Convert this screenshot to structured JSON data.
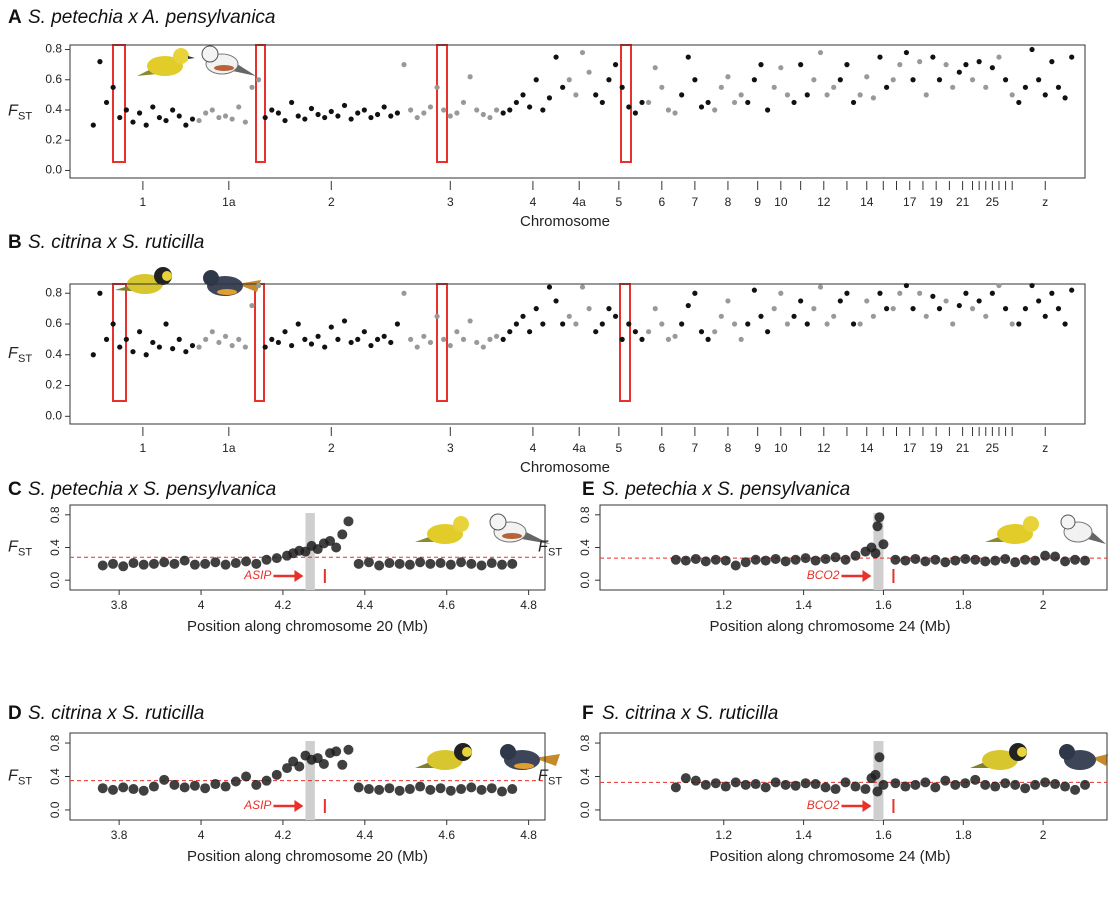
{
  "chart_data": [
    {
      "type": "manhattan",
      "panel": "A",
      "title": "S. petechia x A. pensylvanica",
      "y_label": "F",
      "y_label_sub": "ST",
      "x_label": "Chromosome",
      "ylim": [
        -0.05,
        0.83
      ],
      "yticks": [
        {
          "value": 0,
          "label": "0.0"
        },
        0.2,
        0.4,
        0.6,
        0.8
      ],
      "colors": [
        "#111111",
        "#999999"
      ],
      "chromosomes": [
        {
          "label": "1",
          "values": [
            0.3,
            0.72,
            0.45,
            0.55,
            0.35,
            0.4,
            0.32,
            0.38,
            0.3,
            0.42,
            0.35,
            0.33,
            0.4,
            0.36,
            0.3,
            0.34
          ]
        },
        {
          "label": "1a",
          "values": [
            0.33,
            0.38,
            0.4,
            0.35,
            0.36,
            0.34,
            0.42,
            0.32,
            0.55,
            0.6
          ]
        },
        {
          "label": "2",
          "values": [
            0.35,
            0.4,
            0.38,
            0.33,
            0.45,
            0.36,
            0.34,
            0.41,
            0.37,
            0.35,
            0.39,
            0.36,
            0.43,
            0.34,
            0.38,
            0.4,
            0.35,
            0.37,
            0.42,
            0.36,
            0.38
          ]
        },
        {
          "label": "3",
          "values": [
            0.7,
            0.4,
            0.35,
            0.38,
            0.42,
            0.55,
            0.4,
            0.36,
            0.38,
            0.45,
            0.62,
            0.4,
            0.37,
            0.35,
            0.4
          ]
        },
        {
          "label": "4",
          "values": [
            0.38,
            0.4,
            0.45,
            0.5,
            0.42,
            0.6,
            0.4,
            0.48,
            0.75,
            0.55
          ]
        },
        {
          "label": "4a",
          "values": [
            0.6,
            0.5,
            0.78,
            0.65
          ]
        },
        {
          "label": "5",
          "values": [
            0.5,
            0.45,
            0.6,
            0.7,
            0.55,
            0.42,
            0.38,
            0.45
          ]
        },
        {
          "label": "6",
          "values": [
            0.45,
            0.68,
            0.55,
            0.4,
            0.38
          ]
        },
        {
          "label": "7",
          "values": [
            0.5,
            0.75,
            0.6,
            0.42,
            0.45
          ]
        },
        {
          "label": "8",
          "values": [
            0.4,
            0.55,
            0.62,
            0.45,
            0.5
          ]
        },
        {
          "label": "9",
          "values": [
            0.45,
            0.6,
            0.7,
            0.4
          ]
        },
        {
          "label": "10",
          "values": [
            0.55,
            0.68,
            0.5
          ]
        },
        {
          "label": null,
          "values": [
            0.45,
            0.7,
            0.5
          ]
        },
        {
          "label": "12",
          "values": [
            0.6,
            0.78,
            0.5,
            0.55
          ]
        },
        {
          "label": null,
          "values": [
            0.6,
            0.7,
            0.45
          ]
        },
        {
          "label": "14",
          "values": [
            0.5,
            0.62,
            0.48
          ]
        },
        {
          "label": null,
          "values": [
            0.75,
            0.55
          ]
        },
        {
          "label": null,
          "values": [
            0.6,
            0.7
          ]
        },
        {
          "label": "17",
          "values": [
            0.78,
            0.6
          ]
        },
        {
          "label": null,
          "values": [
            0.72,
            0.5
          ]
        },
        {
          "label": "19",
          "values": [
            0.75,
            0.6
          ]
        },
        {
          "label": null,
          "values": [
            0.7,
            0.55
          ]
        },
        {
          "label": "21",
          "values": [
            0.65,
            0.7
          ]
        },
        {
          "label": null,
          "values": [
            0.6
          ]
        },
        {
          "label": null,
          "values": [
            0.72
          ]
        },
        {
          "label": null,
          "values": [
            0.55
          ]
        },
        {
          "label": "25",
          "values": [
            0.68
          ]
        },
        {
          "label": null,
          "values": [
            0.75
          ]
        },
        {
          "label": null,
          "values": [
            0.6
          ]
        },
        {
          "label": null,
          "values": [
            0.5
          ]
        },
        {
          "label": "z",
          "values": [
            0.45,
            0.55,
            0.8,
            0.6,
            0.5,
            0.72,
            0.55,
            0.48,
            0.75
          ]
        }
      ]
    },
    {
      "type": "manhattan",
      "panel": "B",
      "title": "S. citrina x S. ruticilla",
      "y_label": "F",
      "y_label_sub": "ST",
      "x_label": "Chromosome",
      "ylim": [
        -0.05,
        0.86
      ],
      "yticks": [
        {
          "value": 0,
          "label": "0.0"
        },
        0.2,
        0.4,
        0.6,
        0.8
      ],
      "colors": [
        "#111111",
        "#999999"
      ],
      "chromosomes": [
        {
          "label": "1",
          "values": [
            0.4,
            0.8,
            0.5,
            0.6,
            0.45,
            0.5,
            0.42,
            0.55,
            0.4,
            0.48,
            0.45,
            0.6,
            0.44,
            0.5,
            0.42,
            0.46
          ]
        },
        {
          "label": "1a",
          "values": [
            0.45,
            0.5,
            0.55,
            0.48,
            0.52,
            0.46,
            0.5,
            0.45,
            0.72,
            0.85
          ]
        },
        {
          "label": "2",
          "values": [
            0.45,
            0.5,
            0.48,
            0.55,
            0.46,
            0.6,
            0.5,
            0.47,
            0.52,
            0.45,
            0.58,
            0.5,
            0.62,
            0.48,
            0.5,
            0.55,
            0.46,
            0.5,
            0.52,
            0.48,
            0.6
          ]
        },
        {
          "label": "3",
          "values": [
            0.8,
            0.5,
            0.45,
            0.52,
            0.48,
            0.65,
            0.5,
            0.46,
            0.55,
            0.5,
            0.62,
            0.48,
            0.45,
            0.5,
            0.52
          ]
        },
        {
          "label": "4",
          "values": [
            0.5,
            0.55,
            0.6,
            0.65,
            0.55,
            0.7,
            0.6,
            0.84,
            0.75,
            0.6
          ]
        },
        {
          "label": "4a",
          "values": [
            0.65,
            0.6,
            0.84,
            0.7
          ]
        },
        {
          "label": "5",
          "values": [
            0.55,
            0.6,
            0.7,
            0.65,
            0.5,
            0.6,
            0.55,
            0.5
          ]
        },
        {
          "label": "6",
          "values": [
            0.55,
            0.7,
            0.6,
            0.5,
            0.52
          ]
        },
        {
          "label": "7",
          "values": [
            0.6,
            0.72,
            0.8,
            0.55,
            0.5
          ]
        },
        {
          "label": "8",
          "values": [
            0.55,
            0.65,
            0.75,
            0.6,
            0.5
          ]
        },
        {
          "label": "9",
          "values": [
            0.6,
            0.82,
            0.65,
            0.55
          ]
        },
        {
          "label": "10",
          "values": [
            0.7,
            0.8,
            0.6
          ]
        },
        {
          "label": null,
          "values": [
            0.65,
            0.75,
            0.6
          ]
        },
        {
          "label": "12",
          "values": [
            0.7,
            0.84,
            0.6,
            0.65
          ]
        },
        {
          "label": null,
          "values": [
            0.75,
            0.8,
            0.6
          ]
        },
        {
          "label": "14",
          "values": [
            0.6,
            0.75,
            0.65
          ]
        },
        {
          "label": null,
          "values": [
            0.8,
            0.7
          ]
        },
        {
          "label": null,
          "values": [
            0.7,
            0.8
          ]
        },
        {
          "label": "17",
          "values": [
            0.85,
            0.7
          ]
        },
        {
          "label": null,
          "values": [
            0.8,
            0.65
          ]
        },
        {
          "label": "19",
          "values": [
            0.78,
            0.7
          ]
        },
        {
          "label": null,
          "values": [
            0.75,
            0.6
          ]
        },
        {
          "label": "21",
          "values": [
            0.72,
            0.8
          ]
        },
        {
          "label": null,
          "values": [
            0.7
          ]
        },
        {
          "label": null,
          "values": [
            0.75
          ]
        },
        {
          "label": null,
          "values": [
            0.65
          ]
        },
        {
          "label": "25",
          "values": [
            0.8
          ]
        },
        {
          "label": null,
          "values": [
            0.85
          ]
        },
        {
          "label": null,
          "values": [
            0.7
          ]
        },
        {
          "label": null,
          "values": [
            0.6
          ]
        },
        {
          "label": "z",
          "values": [
            0.6,
            0.7,
            0.85,
            0.75,
            0.65,
            0.8,
            0.7,
            0.6,
            0.82
          ]
        }
      ]
    },
    {
      "type": "scatter",
      "panel": "C",
      "title": "S. petechia x S. pensylvanica",
      "y_label": "F",
      "y_label_sub": "ST",
      "x_label": "Position along chromosome 20 (Mb)",
      "xlim": [
        3.68,
        4.84
      ],
      "xticks": [
        3.8,
        4,
        4.2,
        4.4,
        4.6,
        4.8
      ],
      "ylim": [
        -0.12,
        0.92
      ],
      "yticks": [
        {
          "value": 0,
          "label": "0.0"
        },
        0.4,
        0.8
      ],
      "color": "#1f1f1f",
      "threshold": 0.28,
      "threshold_color": "#e8312a",
      "highlight": [
        4.255,
        4.278
      ],
      "highlight_color": "#cfcfcf",
      "gene": "ASIP",
      "x": [
        3.76,
        3.785,
        3.81,
        3.835,
        3.86,
        3.885,
        3.91,
        3.935,
        3.96,
        3.985,
        4.01,
        4.035,
        4.06,
        4.085,
        4.11,
        4.135,
        4.16,
        4.185,
        4.21,
        4.225,
        4.24,
        4.255,
        4.27,
        4.285,
        4.3,
        4.315,
        4.33,
        4.345,
        4.36,
        4.385,
        4.41,
        4.435,
        4.46,
        4.485,
        4.51,
        4.535,
        4.56,
        4.585,
        4.61,
        4.635,
        4.66,
        4.685,
        4.71,
        4.735,
        4.76
      ],
      "values": [
        0.18,
        0.2,
        0.17,
        0.21,
        0.19,
        0.2,
        0.22,
        0.2,
        0.24,
        0.19,
        0.2,
        0.22,
        0.19,
        0.21,
        0.23,
        0.2,
        0.25,
        0.27,
        0.3,
        0.33,
        0.36,
        0.35,
        0.42,
        0.38,
        0.45,
        0.48,
        0.4,
        0.56,
        0.72,
        0.2,
        0.22,
        0.18,
        0.21,
        0.2,
        0.19,
        0.22,
        0.2,
        0.21,
        0.19,
        0.22,
        0.2,
        0.18,
        0.21,
        0.19,
        0.2
      ]
    },
    {
      "type": "scatter",
      "panel": "D",
      "title": "S. citrina x S. ruticilla",
      "y_label": "F",
      "y_label_sub": "ST",
      "x_label": "Position along chromosome 20 (Mb)",
      "xlim": [
        3.68,
        4.84
      ],
      "xticks": [
        3.8,
        4,
        4.2,
        4.4,
        4.6,
        4.8
      ],
      "ylim": [
        -0.12,
        0.92
      ],
      "yticks": [
        {
          "value": 0,
          "label": "0.0"
        },
        0.4,
        0.8
      ],
      "color": "#1f1f1f",
      "threshold": 0.35,
      "threshold_color": "#e8312a",
      "highlight": [
        4.255,
        4.278
      ],
      "highlight_color": "#cfcfcf",
      "gene": "ASIP",
      "x": [
        3.76,
        3.785,
        3.81,
        3.835,
        3.86,
        3.885,
        3.91,
        3.935,
        3.96,
        3.985,
        4.01,
        4.035,
        4.06,
        4.085,
        4.11,
        4.135,
        4.16,
        4.185,
        4.21,
        4.225,
        4.24,
        4.255,
        4.27,
        4.285,
        4.3,
        4.315,
        4.33,
        4.345,
        4.36,
        4.385,
        4.41,
        4.435,
        4.46,
        4.485,
        4.51,
        4.535,
        4.56,
        4.585,
        4.61,
        4.635,
        4.66,
        4.685,
        4.71,
        4.735,
        4.76
      ],
      "values": [
        0.26,
        0.24,
        0.27,
        0.25,
        0.23,
        0.28,
        0.36,
        0.3,
        0.27,
        0.29,
        0.26,
        0.31,
        0.28,
        0.34,
        0.4,
        0.3,
        0.35,
        0.42,
        0.5,
        0.58,
        0.52,
        0.65,
        0.6,
        0.62,
        0.55,
        0.68,
        0.7,
        0.54,
        0.72,
        0.27,
        0.25,
        0.24,
        0.26,
        0.23,
        0.25,
        0.28,
        0.24,
        0.26,
        0.23,
        0.25,
        0.27,
        0.24,
        0.26,
        0.22,
        0.25
      ]
    },
    {
      "type": "scatter",
      "panel": "E",
      "title": "S. petechia x S. pensylvanica",
      "y_label": "F",
      "y_label_sub": "ST",
      "x_label": "Position along chromosome 24 (Mb)",
      "xlim": [
        0.89,
        2.16
      ],
      "xticks": [
        1.2,
        1.4,
        1.6,
        1.8,
        2
      ],
      "ylim": [
        -0.12,
        0.92
      ],
      "yticks": [
        {
          "value": 0,
          "label": "0.0"
        },
        0.4,
        0.8
      ],
      "color": "#1f1f1f",
      "threshold": 0.27,
      "threshold_color": "#e8312a",
      "highlight": [
        1.575,
        1.6
      ],
      "highlight_color": "#cfcfcf",
      "gene": "BCO2",
      "x": [
        1.08,
        1.105,
        1.13,
        1.155,
        1.18,
        1.205,
        1.23,
        1.255,
        1.28,
        1.305,
        1.33,
        1.355,
        1.38,
        1.405,
        1.43,
        1.455,
        1.48,
        1.505,
        1.53,
        1.555,
        1.57,
        1.58,
        1.585,
        1.59,
        1.6,
        1.63,
        1.655,
        1.68,
        1.705,
        1.73,
        1.755,
        1.78,
        1.805,
        1.83,
        1.855,
        1.88,
        1.905,
        1.93,
        1.955,
        1.98,
        2.005,
        2.03,
        2.055,
        2.08,
        2.105
      ],
      "values": [
        0.25,
        0.24,
        0.26,
        0.23,
        0.25,
        0.24,
        0.18,
        0.22,
        0.25,
        0.24,
        0.26,
        0.23,
        0.25,
        0.27,
        0.24,
        0.26,
        0.28,
        0.25,
        0.3,
        0.35,
        0.4,
        0.33,
        0.66,
        0.77,
        0.44,
        0.25,
        0.24,
        0.26,
        0.23,
        0.25,
        0.22,
        0.24,
        0.26,
        0.25,
        0.23,
        0.24,
        0.26,
        0.22,
        0.25,
        0.24,
        0.3,
        0.29,
        0.23,
        0.25,
        0.24
      ]
    },
    {
      "type": "scatter",
      "panel": "F",
      "title": "S. citrina x S. ruticilla",
      "y_label": "F",
      "y_label_sub": "ST",
      "x_label": "Position along chromosome 24 (Mb)",
      "xlim": [
        0.89,
        2.16
      ],
      "xticks": [
        1.2,
        1.4,
        1.6,
        1.8,
        2
      ],
      "ylim": [
        -0.12,
        0.92
      ],
      "yticks": [
        {
          "value": 0,
          "label": "0.0"
        },
        0.4,
        0.8
      ],
      "color": "#1f1f1f",
      "threshold": 0.33,
      "threshold_color": "#e8312a",
      "highlight": [
        1.575,
        1.6
      ],
      "highlight_color": "#cfcfcf",
      "gene": "BCO2",
      "x": [
        1.08,
        1.105,
        1.13,
        1.155,
        1.18,
        1.205,
        1.23,
        1.255,
        1.28,
        1.305,
        1.33,
        1.355,
        1.38,
        1.405,
        1.43,
        1.455,
        1.48,
        1.505,
        1.53,
        1.555,
        1.57,
        1.58,
        1.585,
        1.59,
        1.6,
        1.63,
        1.655,
        1.68,
        1.705,
        1.73,
        1.755,
        1.78,
        1.805,
        1.83,
        1.855,
        1.88,
        1.905,
        1.93,
        1.955,
        1.98,
        2.005,
        2.03,
        2.055,
        2.08,
        2.105
      ],
      "values": [
        0.27,
        0.38,
        0.35,
        0.3,
        0.32,
        0.28,
        0.33,
        0.3,
        0.31,
        0.27,
        0.33,
        0.3,
        0.29,
        0.32,
        0.31,
        0.27,
        0.25,
        0.33,
        0.28,
        0.25,
        0.38,
        0.42,
        0.22,
        0.63,
        0.3,
        0.32,
        0.28,
        0.3,
        0.33,
        0.27,
        0.35,
        0.3,
        0.32,
        0.36,
        0.3,
        0.28,
        0.32,
        0.3,
        0.26,
        0.3,
        0.33,
        0.31,
        0.28,
        0.24,
        0.3
      ]
    }
  ]
}
